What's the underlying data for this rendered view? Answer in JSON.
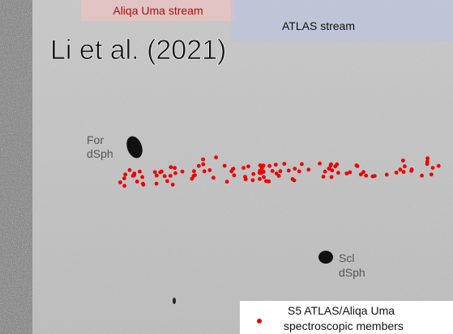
{
  "figure": {
    "title": "Li et al. (2021)",
    "streams": [
      "Aliqa Uma stream",
      "ATLAS stream"
    ],
    "objects": [
      {
        "lines": [
          "For",
          "dSph"
        ]
      },
      {
        "lines": [
          "Scl",
          "dSph"
        ]
      }
    ],
    "legend": {
      "lines": [
        "S5 ATLAS/Aliqa Uma",
        "spectroscopic members"
      ]
    }
  }
}
